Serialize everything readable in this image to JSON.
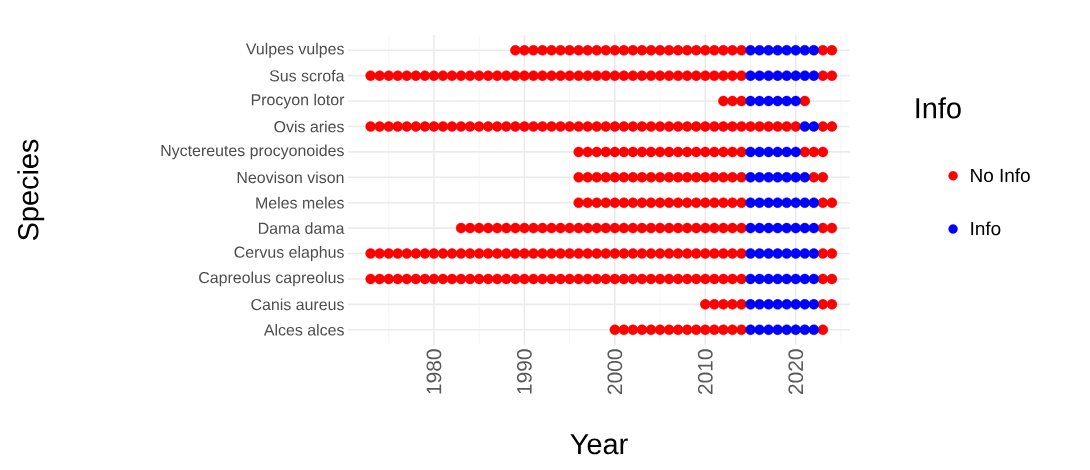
{
  "chart_data": {
    "type": "scatter",
    "orientation": "horizontal",
    "xlabel": "Year",
    "ylabel": "Species",
    "legend_title": "Info",
    "categories": [
      "Vulpes vulpes",
      "Sus scrofa",
      "Procyon lotor",
      "Ovis aries",
      "Nyctereutes procyonoides",
      "Neovison vison",
      "Meles meles",
      "Dama dama",
      "Cervus elaphus",
      "Capreolus capreolus",
      "Canis aureus",
      "Alces alces"
    ],
    "xlim": [
      1970.5,
      2026
    ],
    "xticks": [
      1980,
      1990,
      2000,
      2010,
      2020
    ],
    "grid": true,
    "legend": "right",
    "marker": "circle",
    "series": [
      {
        "name": "No Info",
        "color": "#ff0000",
        "values": [
          null,
          1973,
          null,
          1973,
          null,
          null,
          null,
          null,
          1973,
          1973,
          null,
          null
        ]
      },
      {
        "color": "#ff0000",
        "values": [
          null,
          1974,
          null,
          1974,
          null,
          null,
          null,
          null,
          1974,
          1974,
          null,
          null
        ]
      },
      {
        "color": "#ff0000",
        "values": [
          null,
          1975,
          null,
          1975,
          null,
          null,
          null,
          null,
          1975,
          1975,
          null,
          null
        ]
      },
      {
        "color": "#ff0000",
        "values": [
          null,
          1976,
          null,
          1976,
          null,
          null,
          null,
          null,
          1976,
          1976,
          null,
          null
        ]
      },
      {
        "color": "#ff0000",
        "values": [
          null,
          1977,
          null,
          1977,
          null,
          null,
          null,
          null,
          1977,
          1977,
          null,
          null
        ]
      },
      {
        "color": "#ff0000",
        "values": [
          null,
          1978,
          null,
          1978,
          null,
          null,
          null,
          null,
          1978,
          1978,
          null,
          null
        ]
      },
      {
        "color": "#ff0000",
        "values": [
          null,
          1979,
          null,
          1979,
          null,
          null,
          null,
          null,
          1979,
          1979,
          null,
          null
        ]
      },
      {
        "color": "#ff0000",
        "values": [
          null,
          1980,
          null,
          1980,
          null,
          null,
          null,
          null,
          1980,
          1980,
          null,
          null
        ]
      },
      {
        "color": "#ff0000",
        "values": [
          null,
          1981,
          null,
          1981,
          null,
          null,
          null,
          null,
          1981,
          1981,
          null,
          null
        ]
      },
      {
        "color": "#ff0000",
        "values": [
          null,
          1982,
          null,
          1982,
          null,
          null,
          null,
          null,
          1982,
          1982,
          null,
          null
        ]
      },
      {
        "color": "#ff0000",
        "values": [
          null,
          1983,
          null,
          1983,
          null,
          null,
          null,
          1983,
          1983,
          1983,
          null,
          null
        ]
      },
      {
        "color": "#ff0000",
        "values": [
          null,
          1984,
          null,
          1984,
          null,
          null,
          null,
          1984,
          1984,
          1984,
          null,
          null
        ]
      },
      {
        "color": "#ff0000",
        "values": [
          null,
          1985,
          null,
          1985,
          null,
          null,
          null,
          1985,
          1985,
          1985,
          null,
          null
        ]
      },
      {
        "color": "#ff0000",
        "values": [
          null,
          1986,
          null,
          1986,
          null,
          null,
          null,
          1986,
          1986,
          1986,
          null,
          null
        ]
      },
      {
        "color": "#ff0000",
        "values": [
          null,
          1987,
          null,
          1987,
          null,
          null,
          null,
          1987,
          1987,
          1987,
          null,
          null
        ]
      },
      {
        "color": "#ff0000",
        "values": [
          null,
          1988,
          null,
          1988,
          null,
          null,
          null,
          1988,
          1988,
          1988,
          null,
          null
        ]
      },
      {
        "color": "#ff0000",
        "values": [
          1989,
          1989,
          null,
          1989,
          null,
          null,
          null,
          1989,
          1989,
          1989,
          null,
          null
        ]
      },
      {
        "color": "#ff0000",
        "values": [
          1990,
          1990,
          null,
          1990,
          null,
          null,
          null,
          1990,
          1990,
          1990,
          null,
          null
        ]
      },
      {
        "color": "#ff0000",
        "values": [
          1991,
          1991,
          null,
          1991,
          null,
          null,
          null,
          1991,
          1991,
          1991,
          null,
          null
        ]
      },
      {
        "color": "#ff0000",
        "values": [
          1992,
          1992,
          null,
          1992,
          null,
          null,
          null,
          1992,
          1992,
          1992,
          null,
          null
        ]
      },
      {
        "color": "#ff0000",
        "values": [
          1993,
          1993,
          null,
          1993,
          null,
          null,
          null,
          1993,
          1993,
          1993,
          null,
          null
        ]
      },
      {
        "color": "#ff0000",
        "values": [
          1994,
          1994,
          null,
          1994,
          null,
          null,
          null,
          1994,
          1994,
          1994,
          null,
          null
        ]
      },
      {
        "color": "#ff0000",
        "values": [
          1995,
          1995,
          null,
          1995,
          null,
          null,
          null,
          1995,
          1995,
          1995,
          null,
          null
        ]
      },
      {
        "color": "#ff0000",
        "values": [
          1996,
          1996,
          null,
          1996,
          1996,
          1996,
          1996,
          1996,
          1996,
          1996,
          null,
          null
        ]
      },
      {
        "color": "#ff0000",
        "values": [
          1997,
          1997,
          null,
          1997,
          1997,
          1997,
          1997,
          1997,
          1997,
          1997,
          null,
          null
        ]
      },
      {
        "color": "#ff0000",
        "values": [
          1998,
          1998,
          null,
          1998,
          1998,
          1998,
          1998,
          1998,
          1998,
          1998,
          null,
          null
        ]
      },
      {
        "color": "#ff0000",
        "values": [
          1999,
          1999,
          null,
          1999,
          1999,
          1999,
          1999,
          1999,
          1999,
          1999,
          null,
          null
        ]
      },
      {
        "color": "#ff0000",
        "values": [
          2000,
          2000,
          null,
          2000,
          2000,
          2000,
          2000,
          2000,
          2000,
          2000,
          null,
          2000
        ]
      },
      {
        "color": "#ff0000",
        "values": [
          2001,
          2001,
          null,
          2001,
          2001,
          2001,
          2001,
          2001,
          2001,
          2001,
          null,
          2001
        ]
      },
      {
        "color": "#ff0000",
        "values": [
          2002,
          2002,
          null,
          2002,
          2002,
          2002,
          2002,
          2002,
          2002,
          2002,
          null,
          2002
        ]
      },
      {
        "color": "#ff0000",
        "values": [
          2003,
          2003,
          null,
          2003,
          2003,
          2003,
          2003,
          2003,
          2003,
          2003,
          null,
          2003
        ]
      },
      {
        "color": "#ff0000",
        "values": [
          2004,
          2004,
          null,
          2004,
          2004,
          2004,
          2004,
          2004,
          2004,
          2004,
          null,
          2004
        ]
      },
      {
        "color": "#ff0000",
        "values": [
          2005,
          2005,
          null,
          2005,
          2005,
          2005,
          2005,
          2005,
          2005,
          2005,
          null,
          2005
        ]
      },
      {
        "color": "#ff0000",
        "values": [
          2006,
          2006,
          null,
          2006,
          2006,
          2006,
          2006,
          2006,
          2006,
          2006,
          null,
          2006
        ]
      },
      {
        "color": "#ff0000",
        "values": [
          2007,
          2007,
          null,
          2007,
          2007,
          2007,
          2007,
          2007,
          2007,
          2007,
          null,
          2007
        ]
      },
      {
        "color": "#ff0000",
        "values": [
          2008,
          2008,
          null,
          2008,
          2008,
          2008,
          2008,
          2008,
          2008,
          2008,
          null,
          2008
        ]
      },
      {
        "color": "#ff0000",
        "values": [
          2009,
          2009,
          null,
          2009,
          2009,
          2009,
          2009,
          2009,
          2009,
          2009,
          null,
          2009
        ]
      },
      {
        "color": "#ff0000",
        "values": [
          2010,
          2010,
          null,
          2010,
          2010,
          2010,
          2010,
          2010,
          2010,
          2010,
          2010,
          2010
        ]
      },
      {
        "color": "#ff0000",
        "values": [
          2011,
          2011,
          null,
          2011,
          2011,
          2011,
          2011,
          2011,
          2011,
          2011,
          2011,
          2011
        ]
      },
      {
        "color": "#ff0000",
        "values": [
          2012,
          2012,
          2012,
          2012,
          2012,
          2012,
          2012,
          2012,
          2012,
          2012,
          2012,
          2012
        ]
      },
      {
        "color": "#ff0000",
        "values": [
          2013,
          2013,
          2013,
          2013,
          2013,
          2013,
          2013,
          2013,
          2013,
          2013,
          2013,
          2013
        ]
      },
      {
        "color": "#ff0000",
        "values": [
          2014,
          2014,
          2014,
          2014,
          2014,
          2014,
          2014,
          2014,
          2014,
          2014,
          2014,
          2014
        ]
      },
      {
        "color": "#ff0000",
        "values": [
          null,
          null,
          null,
          2015,
          null,
          null,
          null,
          null,
          null,
          null,
          null,
          null
        ]
      },
      {
        "color": "#ff0000",
        "values": [
          null,
          null,
          null,
          2016,
          null,
          null,
          null,
          null,
          null,
          null,
          null,
          null
        ]
      },
      {
        "color": "#ff0000",
        "values": [
          null,
          null,
          null,
          2017,
          null,
          null,
          null,
          null,
          null,
          null,
          null,
          null
        ]
      },
      {
        "color": "#ff0000",
        "values": [
          null,
          null,
          null,
          2018,
          null,
          null,
          null,
          null,
          null,
          null,
          null,
          null
        ]
      },
      {
        "color": "#ff0000",
        "values": [
          null,
          null,
          null,
          2019,
          null,
          null,
          null,
          null,
          null,
          null,
          null,
          null
        ]
      },
      {
        "color": "#ff0000",
        "values": [
          null,
          null,
          null,
          2020,
          null,
          null,
          null,
          null,
          null,
          null,
          null,
          null
        ]
      },
      {
        "color": "#ff0000",
        "values": [
          null,
          null,
          2021,
          null,
          2021,
          null,
          null,
          null,
          null,
          null,
          null,
          null
        ]
      },
      {
        "color": "#ff0000",
        "values": [
          null,
          null,
          null,
          null,
          2022,
          2022,
          null,
          null,
          null,
          null,
          null,
          null
        ]
      },
      {
        "color": "#ff0000",
        "values": [
          2023,
          2023,
          null,
          2023,
          2023,
          2023,
          2023,
          2023,
          2023,
          2023,
          2023,
          2023
        ]
      },
      {
        "color": "#ff0000",
        "values": [
          2024,
          2024,
          null,
          2024,
          null,
          null,
          2024,
          2024,
          2024,
          2024,
          2024,
          null
        ]
      },
      {
        "name": "Info",
        "color": "#0000ff",
        "values": [
          2015,
          2015,
          2015,
          null,
          2015,
          2015,
          2015,
          2015,
          2015,
          2015,
          2015,
          2015
        ]
      },
      {
        "color": "#0000ff",
        "values": [
          2016,
          2016,
          2016,
          null,
          2016,
          2016,
          2016,
          2016,
          2016,
          2016,
          2016,
          2016
        ]
      },
      {
        "color": "#0000ff",
        "values": [
          2017,
          2017,
          2017,
          null,
          2017,
          2017,
          2017,
          2017,
          2017,
          2017,
          2017,
          2017
        ]
      },
      {
        "color": "#0000ff",
        "values": [
          2018,
          2018,
          2018,
          null,
          2018,
          2018,
          2018,
          2018,
          2018,
          2018,
          2018,
          2018
        ]
      },
      {
        "color": "#0000ff",
        "values": [
          2019,
          2019,
          2019,
          null,
          2019,
          2019,
          2019,
          2019,
          2019,
          2019,
          2019,
          2019
        ]
      },
      {
        "color": "#0000ff",
        "values": [
          2020,
          2020,
          2020,
          null,
          2020,
          2020,
          2020,
          2020,
          2020,
          2020,
          2020,
          2020
        ]
      },
      {
        "color": "#0000ff",
        "values": [
          2021,
          2021,
          null,
          2021,
          null,
          2021,
          2021,
          2021,
          2021,
          2021,
          2021,
          2021
        ]
      },
      {
        "color": "#0000ff",
        "values": [
          2022,
          2022,
          null,
          2022,
          null,
          null,
          2022,
          2022,
          2022,
          2022,
          2022,
          2022
        ]
      }
    ]
  }
}
